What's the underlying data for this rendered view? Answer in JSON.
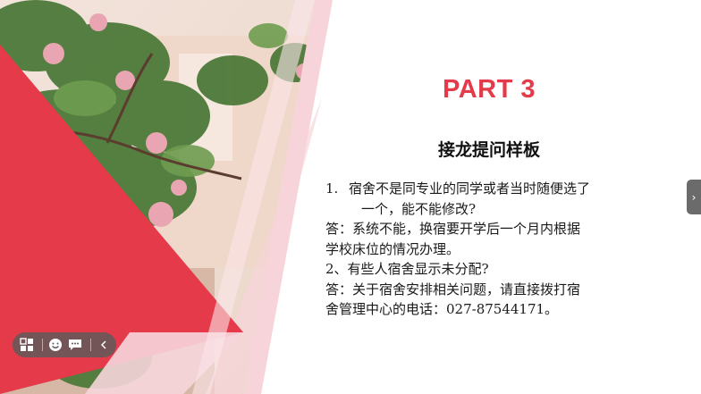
{
  "slide": {
    "part_title": "PART 3",
    "subtitle": "接龙提问样板",
    "items": [
      {
        "number": "1.",
        "lines": [
          "宿舍不是同专业的同学或者当时随便选了",
          "一个，能不能修改?"
        ]
      },
      {
        "answer_lines": [
          "答：系统不能，换宿要开学后一个月内根据",
          "学校床位的情况办理。"
        ]
      },
      {
        "question_line": "2、有些人宿舍显示未分配?"
      },
      {
        "answer_lines": [
          "答：关于宿舍安排相关问题，请直接拨打宿",
          "舍管理中心的电话：027-87544171。"
        ]
      }
    ]
  },
  "colors": {
    "accent_red": "#e43a4a",
    "pink_band": "#f4c9cf",
    "text": "#1a1a1a"
  },
  "side_tab": {
    "icon": "chevron-right-icon",
    "glyph": "›"
  },
  "toolbar": {
    "buttons": [
      {
        "name": "grid-view-icon"
      },
      {
        "name": "emoji-icon"
      },
      {
        "name": "chat-icon"
      },
      {
        "name": "collapse-chevron-icon"
      }
    ]
  }
}
